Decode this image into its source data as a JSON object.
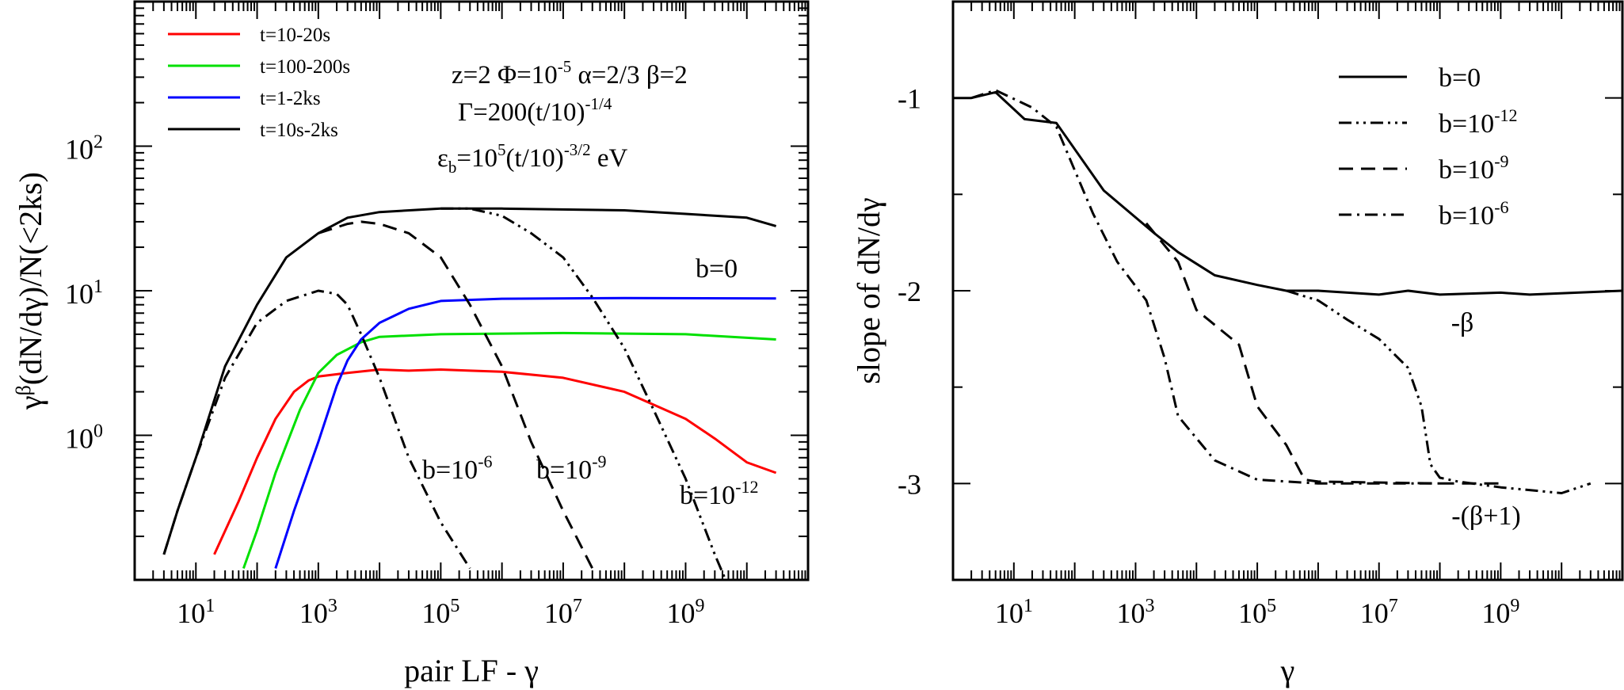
{
  "colors": {
    "red": "#ff0000",
    "green": "#00e000",
    "blue": "#0000ff",
    "black": "#000000"
  },
  "chart_data": [
    {
      "type": "line",
      "xscale": "log",
      "yscale": "log",
      "xlim": [
        1,
        100000000000
      ],
      "ylim": [
        0.1,
        1000
      ],
      "xlabel": "pair LF - γ",
      "ylabel": "γ^β(dN/dγ)/N(<2ks)",
      "x_ticks": [
        {
          "base": "10",
          "exp": "1"
        },
        {
          "base": "10",
          "exp": "3"
        },
        {
          "base": "10",
          "exp": "5"
        },
        {
          "base": "10",
          "exp": "7"
        },
        {
          "base": "10",
          "exp": "9"
        }
      ],
      "y_ticks": [
        {
          "base": "10",
          "exp": "0"
        },
        {
          "base": "10",
          "exp": "1"
        },
        {
          "base": "10",
          "exp": "2"
        }
      ],
      "legend": {
        "position": "top-left",
        "entries": [
          {
            "label": "t=10-20s",
            "color": "#ff0000"
          },
          {
            "label": "t=100-200s",
            "color": "#00e000"
          },
          {
            "label": "t=1-2ks",
            "color": "#0000ff"
          },
          {
            "label": "t=10s-2ks",
            "color": "#000000"
          }
        ]
      },
      "params": [
        {
          "parts": [
            [
              "z=2  Φ=10",
              ""
            ],
            [
              "-5",
              "sup"
            ],
            [
              "  α=2/3  β=2",
              ""
            ]
          ]
        },
        {
          "parts": [
            [
              "Γ=200(t/10)",
              ""
            ],
            [
              "-1/4",
              "sup"
            ]
          ]
        },
        {
          "parts": [
            [
              "ε",
              ""
            ],
            [
              "b",
              "sub"
            ],
            [
              "=10",
              ""
            ],
            [
              "5",
              "sup"
            ],
            [
              "(t/10)",
              ""
            ],
            [
              "-3/2",
              "sup"
            ],
            [
              " eV",
              ""
            ]
          ]
        }
      ],
      "annotations": [
        {
          "parts": [
            [
              "b=0",
              ""
            ]
          ]
        },
        {
          "parts": [
            [
              "b=10",
              ""
            ],
            [
              "-6",
              "sup"
            ]
          ]
        },
        {
          "parts": [
            [
              "b=10",
              ""
            ],
            [
              "-9",
              "sup"
            ]
          ]
        },
        {
          "parts": [
            [
              "b=10",
              ""
            ],
            [
              "-12",
              "sup"
            ]
          ]
        }
      ],
      "series": [
        {
          "name": "t=10-20s",
          "color": "#ff0000",
          "dash": "solid",
          "points": [
            [
              20,
              0.15
            ],
            [
              50,
              0.35
            ],
            [
              100,
              0.7
            ],
            [
              200,
              1.3
            ],
            [
              400,
              2.0
            ],
            [
              700,
              2.4
            ],
            [
              1000,
              2.55
            ],
            [
              3000,
              2.7
            ],
            [
              10000,
              2.85
            ],
            [
              30000,
              2.8
            ],
            [
              100000,
              2.85
            ],
            [
              300000,
              2.8
            ],
            [
              1000000,
              2.75
            ],
            [
              10000000,
              2.5
            ],
            [
              100000000,
              2.0
            ],
            [
              1000000000,
              1.3
            ],
            [
              3000000000,
              0.95
            ],
            [
              10000000000,
              0.65
            ],
            [
              30000000000,
              0.55
            ]
          ]
        },
        {
          "name": "t=100-200s",
          "color": "#00e000",
          "dash": "solid",
          "points": [
            [
              60,
              0.12
            ],
            [
              100,
              0.22
            ],
            [
              200,
              0.55
            ],
            [
              500,
              1.5
            ],
            [
              1000,
              2.7
            ],
            [
              2000,
              3.6
            ],
            [
              5000,
              4.4
            ],
            [
              10000,
              4.8
            ],
            [
              100000,
              5.0
            ],
            [
              1000000,
              5.05
            ],
            [
              10000000,
              5.1
            ],
            [
              1000000000,
              5.0
            ],
            [
              30000000000,
              4.6
            ]
          ]
        },
        {
          "name": "t=1-2ks",
          "color": "#0000ff",
          "dash": "solid",
          "points": [
            [
              200,
              0.12
            ],
            [
              400,
              0.3
            ],
            [
              1000,
              0.9
            ],
            [
              2000,
              2.2
            ],
            [
              3000,
              3.3
            ],
            [
              5000,
              4.6
            ],
            [
              10000,
              6.0
            ],
            [
              30000,
              7.5
            ],
            [
              100000,
              8.5
            ],
            [
              1000000,
              8.8
            ],
            [
              100000000,
              8.9
            ],
            [
              30000000000,
              8.85
            ]
          ]
        },
        {
          "name": "b=0",
          "color": "#000000",
          "dash": "solid",
          "points": [
            [
              3,
              0.15
            ],
            [
              5,
              0.3
            ],
            [
              10,
              0.7
            ],
            [
              30,
              3.0
            ],
            [
              100,
              8.0
            ],
            [
              300,
              17
            ],
            [
              1000,
              25
            ],
            [
              3000,
              32
            ],
            [
              10000,
              35
            ],
            [
              100000,
              37
            ],
            [
              1000000,
              37
            ],
            [
              100000000,
              36
            ],
            [
              1000000000,
              34
            ],
            [
              10000000000,
              32
            ],
            [
              30000000000,
              28
            ]
          ]
        },
        {
          "name": "b=10^-6",
          "color": "#000000",
          "dash": "dashdot",
          "points": [
            [
              3,
              0.15
            ],
            [
              5,
              0.3
            ],
            [
              10,
              0.7
            ],
            [
              30,
              2.5
            ],
            [
              100,
              6
            ],
            [
              300,
              8.5
            ],
            [
              1000,
              10
            ],
            [
              2000,
              9.5
            ],
            [
              3000,
              8
            ],
            [
              5000,
              5
            ],
            [
              10000,
              2.5
            ],
            [
              30000,
              0.7
            ],
            [
              100000,
              0.25
            ],
            [
              300000,
              0.12
            ]
          ]
        },
        {
          "name": "b=10^-9",
          "color": "#000000",
          "dash": "dashed",
          "points": [
            [
              1000,
              25
            ],
            [
              3000,
              29
            ],
            [
              5000,
              30
            ],
            [
              10000,
              29
            ],
            [
              30000,
              25
            ],
            [
              100000,
              17
            ],
            [
              300000,
              8
            ],
            [
              1000000,
              3
            ],
            [
              3000000,
              0.9
            ],
            [
              10000000,
              0.3
            ],
            [
              30000000,
              0.12
            ]
          ]
        },
        {
          "name": "b=10^-12",
          "color": "#000000",
          "dash": "dashdotdot",
          "points": [
            [
              100000,
              37
            ],
            [
              300000,
              37
            ],
            [
              1000000,
              33
            ],
            [
              3000000,
              25
            ],
            [
              10000000,
              17
            ],
            [
              30000000,
              9
            ],
            [
              100000000,
              4
            ],
            [
              300000000,
              1.5
            ],
            [
              1000000000,
              0.5
            ],
            [
              3000000000,
              0.15
            ],
            [
              5000000000,
              0.09
            ]
          ]
        }
      ]
    },
    {
      "type": "line",
      "xscale": "log",
      "yscale": "linear",
      "xlim": [
        1,
        100000000000
      ],
      "ylim": [
        -3.5,
        -0.5
      ],
      "xlabel": "γ",
      "ylabel": "slope of dN/dγ",
      "x_ticks": [
        {
          "base": "10",
          "exp": "1"
        },
        {
          "base": "10",
          "exp": "3"
        },
        {
          "base": "10",
          "exp": "5"
        },
        {
          "base": "10",
          "exp": "7"
        },
        {
          "base": "10",
          "exp": "9"
        }
      ],
      "y_ticks": [
        "-1",
        "-2",
        "-3"
      ],
      "legend": {
        "position": "top-right",
        "entries": [
          {
            "dash": "solid",
            "parts": [
              [
                "b=0",
                ""
              ]
            ]
          },
          {
            "dash": "dashdotdot",
            "parts": [
              [
                "b=10",
                ""
              ],
              [
                "-12",
                "sup"
              ]
            ]
          },
          {
            "dash": "dashed",
            "parts": [
              [
                "b=10",
                ""
              ],
              [
                "-9",
                "sup"
              ]
            ]
          },
          {
            "dash": "dashdot",
            "parts": [
              [
                "b=10",
                ""
              ],
              [
                "-6",
                "sup"
              ]
            ]
          }
        ]
      },
      "annotations": [
        {
          "parts": [
            [
              "-β",
              ""
            ]
          ]
        },
        {
          "parts": [
            [
              "-(β+1)",
              ""
            ]
          ]
        }
      ],
      "series": [
        {
          "name": "b=0",
          "color": "#000000",
          "dash": "solid",
          "points": [
            [
              1,
              -1.0
            ],
            [
              2,
              -1.0
            ],
            [
              5,
              -0.97
            ],
            [
              15,
              -1.11
            ],
            [
              50,
              -1.13
            ],
            [
              300,
              -1.48
            ],
            [
              2000,
              -1.7
            ],
            [
              5000,
              -1.8
            ],
            [
              20000,
              -1.92
            ],
            [
              100000,
              -1.97
            ],
            [
              300000,
              -2.0
            ],
            [
              1000000,
              -2.0
            ],
            [
              10000000,
              -2.02
            ],
            [
              30000000,
              -2.0
            ],
            [
              100000000,
              -2.02
            ],
            [
              1000000000,
              -2.01
            ],
            [
              3000000000,
              -2.02
            ],
            [
              100000000000,
              -2.0
            ]
          ]
        },
        {
          "name": "b=10^-12",
          "color": "#000000",
          "dash": "dashdotdot",
          "points": [
            [
              300000,
              -2.0
            ],
            [
              1000000,
              -2.05
            ],
            [
              3000000,
              -2.15
            ],
            [
              10000000,
              -2.25
            ],
            [
              30000000,
              -2.4
            ],
            [
              50000000,
              -2.6
            ],
            [
              70000000,
              -2.9
            ],
            [
              100000000,
              -2.97
            ],
            [
              200000000,
              -2.99
            ],
            [
              1000000000,
              -3.02
            ],
            [
              10000000000,
              -3.05
            ],
            [
              30000000000,
              -3.0
            ]
          ]
        },
        {
          "name": "b=10^-9",
          "color": "#000000",
          "dash": "dashed",
          "points": [
            [
              1500,
              -1.65
            ],
            [
              5000,
              -1.85
            ],
            [
              10000,
              -2.1
            ],
            [
              50000,
              -2.28
            ],
            [
              100000,
              -2.6
            ],
            [
              300000,
              -2.8
            ],
            [
              600000,
              -2.98
            ],
            [
              1000000,
              -2.99
            ],
            [
              100000000,
              -3.0
            ],
            [
              1000000000,
              -3.0
            ]
          ]
        },
        {
          "name": "b=10^-6",
          "color": "#000000",
          "dash": "dashdot",
          "points": [
            [
              2,
              -1.0
            ],
            [
              5,
              -0.96
            ],
            [
              20,
              -1.05
            ],
            [
              50,
              -1.15
            ],
            [
              200,
              -1.6
            ],
            [
              500,
              -1.85
            ],
            [
              1500,
              -2.05
            ],
            [
              3000,
              -2.35
            ],
            [
              5000,
              -2.65
            ],
            [
              20000,
              -2.88
            ],
            [
              100000,
              -2.98
            ],
            [
              1000000,
              -3.0
            ],
            [
              10000000,
              -3.0
            ],
            [
              100000000,
              -3.0
            ]
          ]
        }
      ]
    }
  ]
}
